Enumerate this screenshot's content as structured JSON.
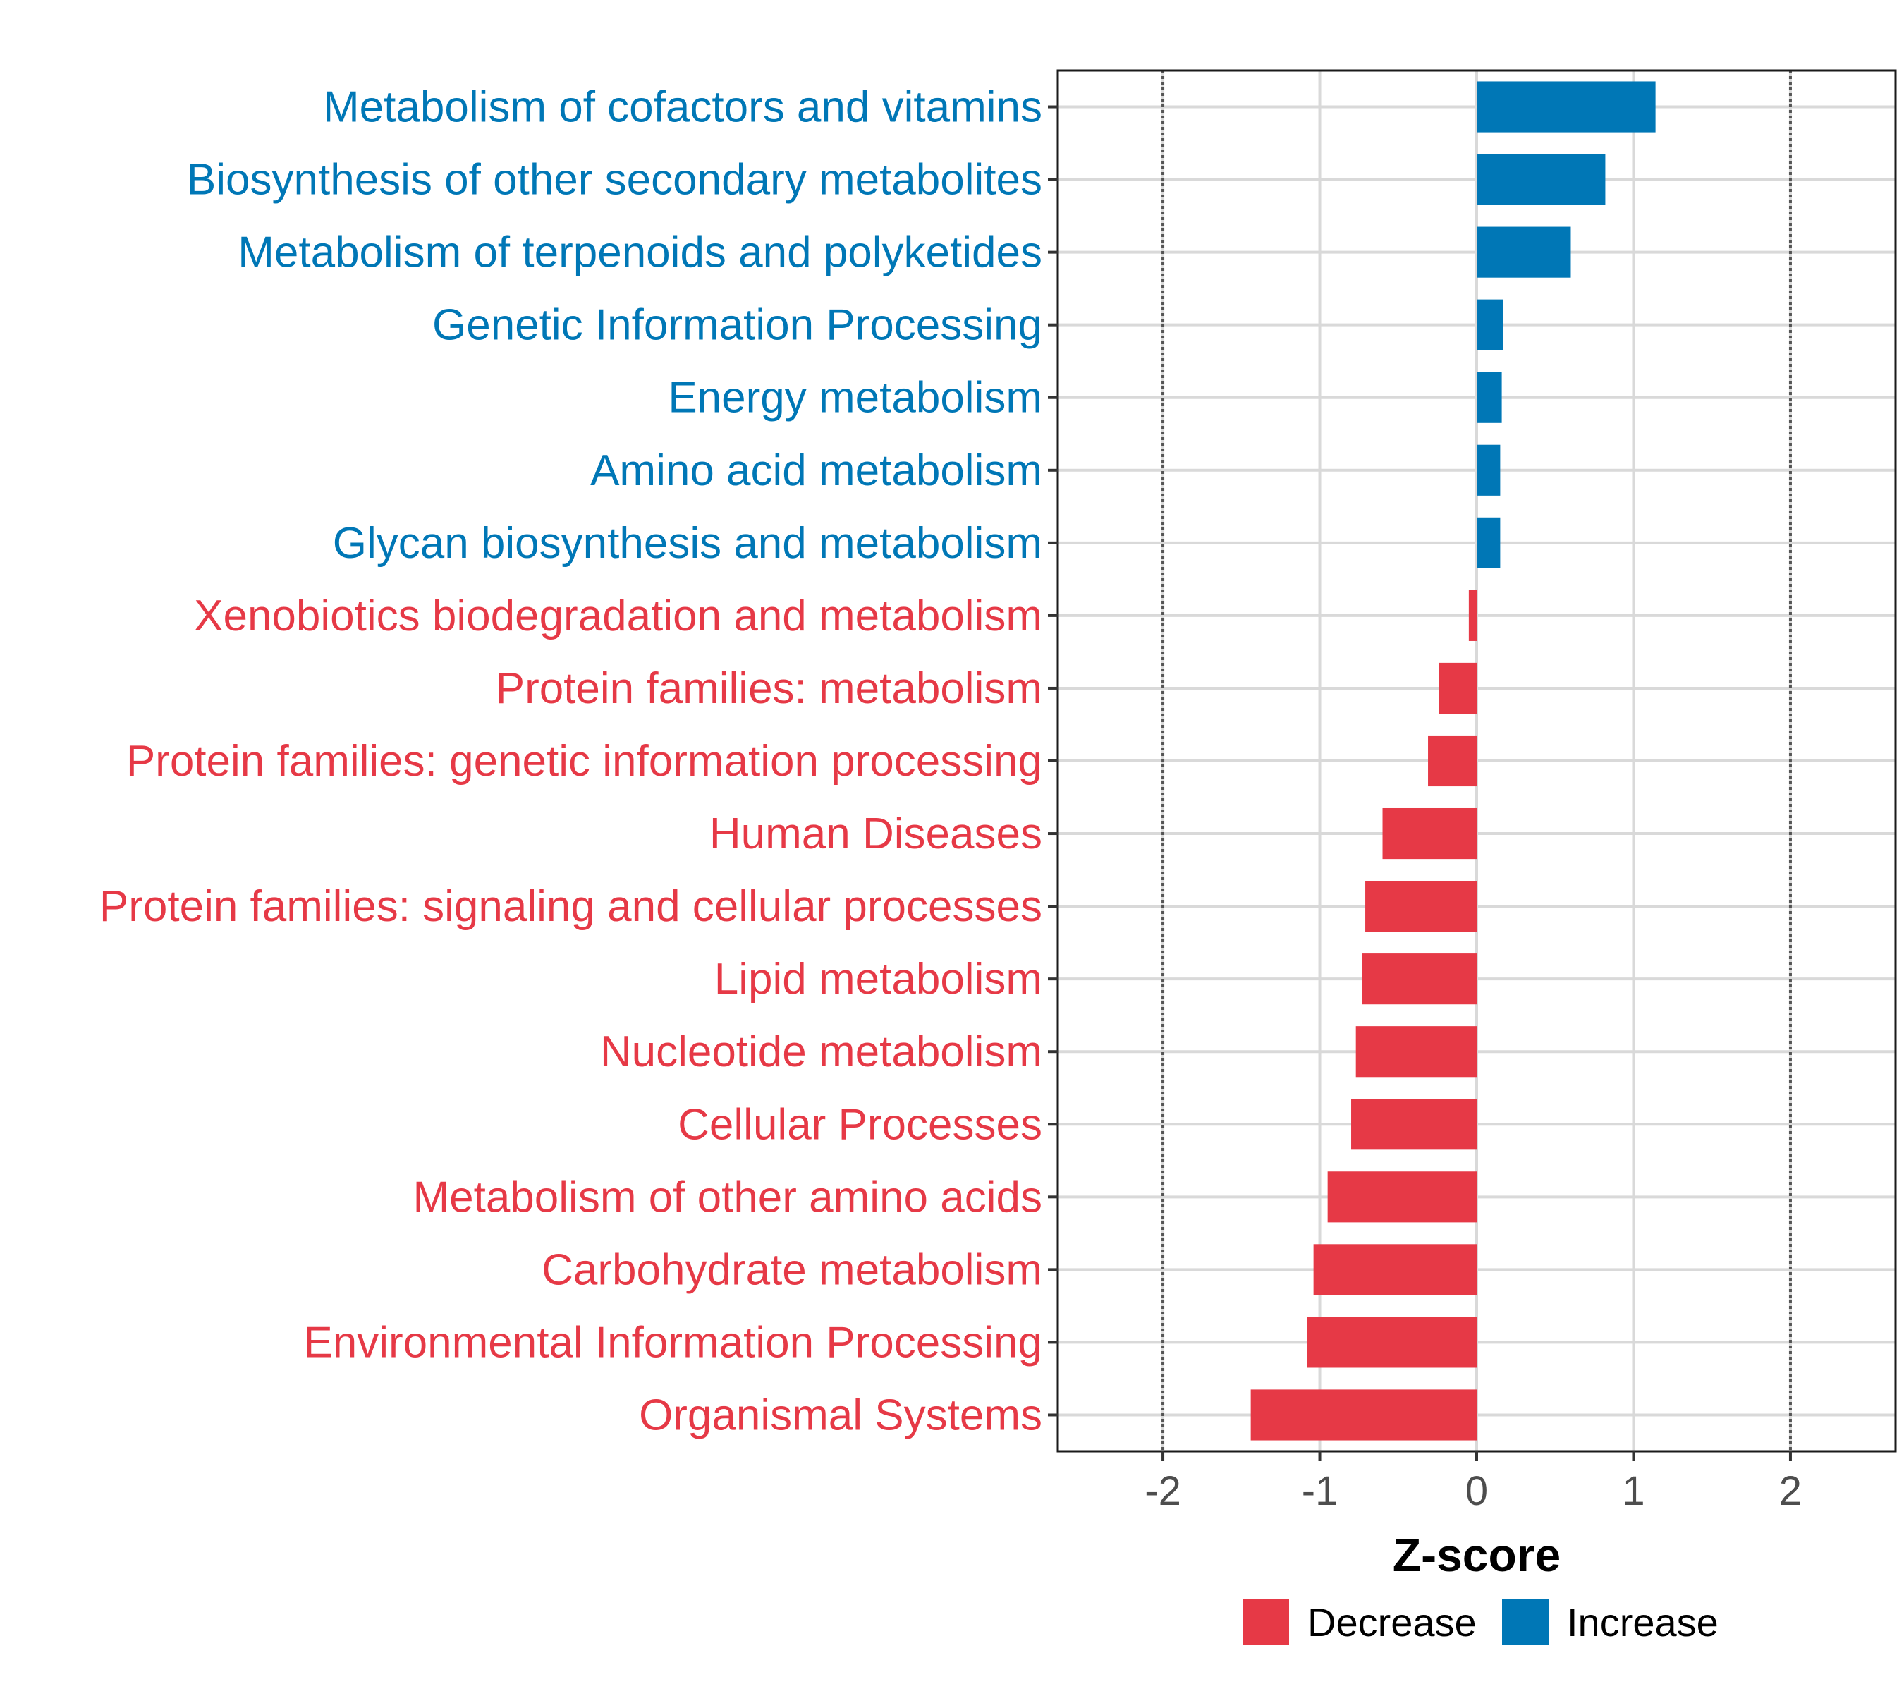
{
  "chart_data": {
    "type": "bar",
    "orientation": "horizontal",
    "categories": [
      "Metabolism of cofactors and vitamins",
      "Biosynthesis of other secondary metabolites",
      "Metabolism of terpenoids and polyketides",
      "Genetic Information Processing",
      "Energy metabolism",
      "Amino acid metabolism",
      "Glycan biosynthesis and metabolism",
      "Xenobiotics biodegradation and metabolism",
      "Protein families: metabolism",
      "Protein families: genetic information processing",
      "Human Diseases",
      "Protein families: signaling and cellular processes",
      "Lipid metabolism",
      "Nucleotide metabolism",
      "Cellular Processes",
      "Metabolism of other amino acids",
      "Carbohydrate metabolism",
      "Environmental Information Processing",
      "Organismal Systems"
    ],
    "values": [
      1.14,
      0.82,
      0.6,
      0.17,
      0.16,
      0.15,
      0.15,
      -0.05,
      -0.24,
      -0.31,
      -0.6,
      -0.71,
      -0.73,
      -0.77,
      -0.8,
      -0.95,
      -1.04,
      -1.08,
      -1.44
    ],
    "groups": [
      "Increase",
      "Increase",
      "Increase",
      "Increase",
      "Increase",
      "Increase",
      "Increase",
      "Decrease",
      "Decrease",
      "Decrease",
      "Decrease",
      "Decrease",
      "Decrease",
      "Decrease",
      "Decrease",
      "Decrease",
      "Decrease",
      "Decrease",
      "Decrease"
    ],
    "xlabel": "Z-score",
    "ylabel": "",
    "xlim": [
      -2.67,
      2.67
    ],
    "xticks": [
      -2,
      -1,
      0,
      1,
      2
    ],
    "xtick_labels": [
      "-2",
      "-1",
      "0",
      "1",
      "2"
    ],
    "reference_lines": [
      -2,
      2
    ],
    "grid": true,
    "legend": {
      "placement": "bottom",
      "entries": [
        {
          "label": "Decrease",
          "color": "#e63946"
        },
        {
          "label": "Increase",
          "color": "#0077b6"
        }
      ]
    },
    "colors": {
      "Increase": "#0077b6",
      "Decrease": "#e63946"
    }
  }
}
